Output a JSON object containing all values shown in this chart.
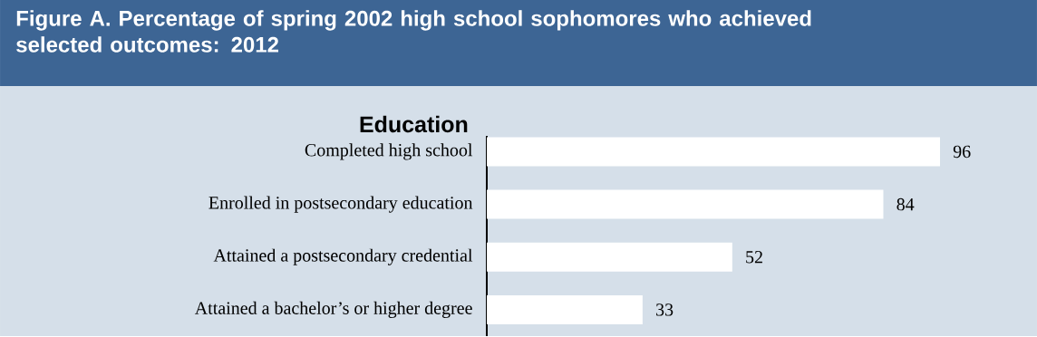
{
  "chart_data": {
    "type": "bar",
    "orientation": "horizontal",
    "title": "Figure A. Percentage of spring 2002 high school sophomores who achieved selected outcomes: 2012",
    "subtitle": "Education",
    "categories": [
      "Completed high school",
      "Enrolled in postsecondary education",
      "Attained a postsecondary credential",
      "Attained a bachelor’s or higher degree"
    ],
    "values": [
      96,
      84,
      52,
      33
    ],
    "color": "#ffffff",
    "data_labels": true
  }
}
